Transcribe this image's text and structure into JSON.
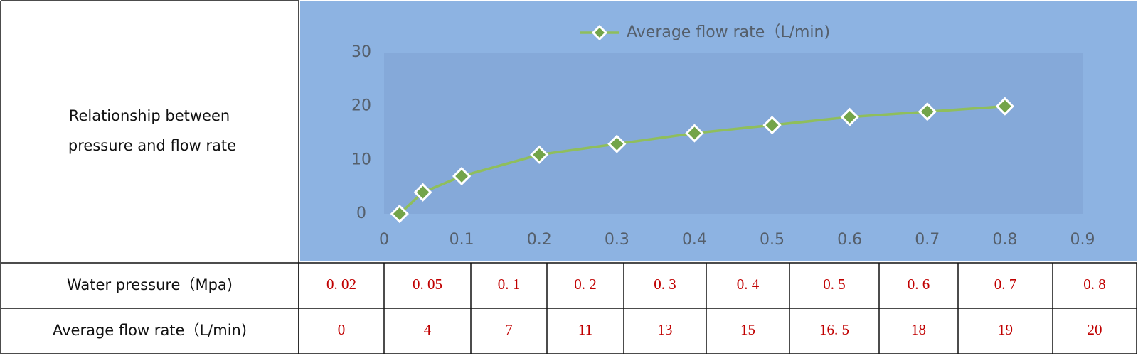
{
  "chart_data": {
    "type": "line",
    "x": [
      0.02,
      0.05,
      0.1,
      0.2,
      0.3,
      0.4,
      0.5,
      0.6,
      0.7,
      0.8
    ],
    "series": [
      {
        "name": "Average flow rate（L/min)",
        "color": "#8fbe5c",
        "marker_color": "#73a44a",
        "values": [
          0,
          4,
          7,
          11,
          13,
          15,
          16.5,
          18,
          19,
          20
        ]
      }
    ],
    "xlim": [
      0,
      0.9
    ],
    "xticks": [
      0,
      0.1,
      0.2,
      0.3,
      0.4,
      0.5,
      0.6,
      0.7,
      0.8,
      0.9
    ],
    "ylim": [
      0,
      30
    ],
    "yticks": [
      0,
      10,
      20,
      30
    ],
    "legend": "top"
  },
  "table": {
    "label_lines": [
      "Relationship between",
      "pressure and flow rate"
    ],
    "rows": [
      [
        "Water pressure（Mpa)",
        "0. 02",
        "0. 05",
        "0. 1",
        "0. 2",
        "0. 3",
        "0. 4",
        "0. 5",
        "0. 6",
        "0. 7",
        "0. 8"
      ],
      [
        "Average flow rate（L/min)",
        "0",
        "4",
        "7",
        "11",
        "13",
        "15",
        "16. 5",
        "18",
        "19",
        "20"
      ]
    ]
  }
}
